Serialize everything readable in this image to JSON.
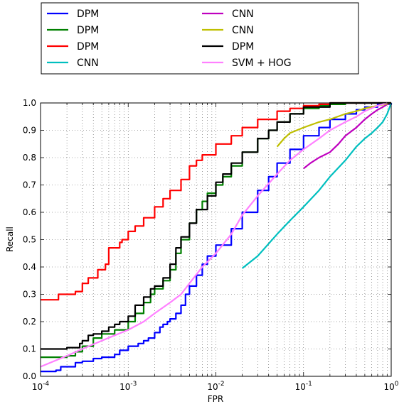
{
  "chart_data": {
    "type": "line",
    "xlabel": "FPR",
    "ylabel": "Recall",
    "xscale": "log",
    "xlim": [
      0.0001,
      1
    ],
    "ylim": [
      0.0,
      1.0
    ],
    "grid": true,
    "legend_placement": "top",
    "x_tick_labels": [
      {
        "base": "10",
        "exp": "-4"
      },
      {
        "base": "10",
        "exp": "-3"
      },
      {
        "base": "10",
        "exp": "-2"
      },
      {
        "base": "10",
        "exp": "-1"
      },
      {
        "base": "10",
        "exp": "0"
      }
    ],
    "y_tick_labels": [
      "0.0",
      "0.1",
      "0.2",
      "0.3",
      "0.4",
      "0.5",
      "0.6",
      "0.7",
      "0.8",
      "0.9",
      "1.0"
    ],
    "series": [
      {
        "name": "DPM",
        "color": "#0000ff",
        "step": true,
        "x": [
          0.0001,
          0.00015,
          0.00017,
          0.00025,
          0.0003,
          0.0004,
          0.0005,
          0.0007,
          0.0008,
          0.001,
          0.0013,
          0.0015,
          0.0017,
          0.002,
          0.0023,
          0.0025,
          0.0028,
          0.003,
          0.0035,
          0.004,
          0.0045,
          0.005,
          0.006,
          0.007,
          0.008,
          0.01,
          0.015,
          0.02,
          0.03,
          0.04,
          0.05,
          0.07,
          0.1,
          0.15,
          0.2,
          0.3,
          0.4,
          0.5,
          0.7,
          1.0
        ],
        "y": [
          0.018,
          0.022,
          0.035,
          0.05,
          0.055,
          0.065,
          0.07,
          0.08,
          0.095,
          0.11,
          0.12,
          0.13,
          0.14,
          0.16,
          0.18,
          0.19,
          0.2,
          0.21,
          0.23,
          0.26,
          0.3,
          0.33,
          0.37,
          0.41,
          0.44,
          0.48,
          0.54,
          0.6,
          0.68,
          0.73,
          0.78,
          0.83,
          0.88,
          0.91,
          0.94,
          0.96,
          0.975,
          0.985,
          0.995,
          1.0
        ]
      },
      {
        "name": "DPM",
        "color": "#008000",
        "step": true,
        "x": [
          0.0001,
          0.0002,
          0.00025,
          0.0003,
          0.0004,
          0.0005,
          0.0007,
          0.001,
          0.0012,
          0.0015,
          0.0018,
          0.002,
          0.0025,
          0.003,
          0.0035,
          0.004,
          0.005,
          0.006,
          0.007,
          0.008,
          0.01,
          0.012,
          0.015,
          0.02,
          0.03,
          0.04,
          0.05,
          0.07,
          0.1,
          0.15,
          0.2,
          0.3,
          0.5,
          0.7,
          1.0
        ],
        "y": [
          0.07,
          0.075,
          0.09,
          0.11,
          0.14,
          0.155,
          0.17,
          0.2,
          0.23,
          0.27,
          0.3,
          0.32,
          0.35,
          0.39,
          0.45,
          0.5,
          0.56,
          0.61,
          0.64,
          0.67,
          0.7,
          0.73,
          0.77,
          0.82,
          0.87,
          0.9,
          0.93,
          0.96,
          0.98,
          0.99,
          0.995,
          1.0,
          1.0,
          1.0,
          1.0
        ]
      },
      {
        "name": "DPM",
        "color": "#ff0000",
        "step": true,
        "x": [
          0.0001,
          0.00016,
          0.00025,
          0.0003,
          0.00035,
          0.00045,
          0.00055,
          0.0006,
          0.0008,
          0.00085,
          0.001,
          0.0012,
          0.0015,
          0.002,
          0.0025,
          0.003,
          0.004,
          0.005,
          0.006,
          0.007,
          0.01,
          0.015,
          0.02,
          0.03,
          0.05,
          0.07,
          0.1,
          0.15,
          0.2,
          0.3,
          0.5,
          1.0
        ],
        "y": [
          0.28,
          0.3,
          0.31,
          0.34,
          0.36,
          0.39,
          0.41,
          0.47,
          0.49,
          0.5,
          0.53,
          0.55,
          0.58,
          0.62,
          0.65,
          0.68,
          0.72,
          0.77,
          0.79,
          0.81,
          0.85,
          0.88,
          0.91,
          0.94,
          0.97,
          0.98,
          0.99,
          0.995,
          1.0,
          1.0,
          1.0,
          1.0
        ]
      },
      {
        "name": "CNN",
        "color": "#00bfbf",
        "step": false,
        "x": [
          0.02,
          0.03,
          0.05,
          0.07,
          0.1,
          0.15,
          0.2,
          0.3,
          0.4,
          0.5,
          0.6,
          0.7,
          0.8,
          0.9,
          1.0
        ],
        "y": [
          0.395,
          0.44,
          0.52,
          0.57,
          0.62,
          0.68,
          0.73,
          0.79,
          0.84,
          0.87,
          0.89,
          0.91,
          0.93,
          0.96,
          1.0
        ]
      },
      {
        "name": "CNN",
        "color": "#bf00bf",
        "step": false,
        "x": [
          0.1,
          0.12,
          0.15,
          0.2,
          0.25,
          0.3,
          0.4,
          0.5,
          0.6,
          0.7,
          0.8,
          0.9,
          1.0
        ],
        "y": [
          0.76,
          0.78,
          0.8,
          0.82,
          0.85,
          0.88,
          0.91,
          0.94,
          0.96,
          0.975,
          0.985,
          0.995,
          1.0
        ]
      },
      {
        "name": "CNN",
        "color": "#bfbf00",
        "step": false,
        "x": [
          0.05,
          0.06,
          0.07,
          0.1,
          0.15,
          0.2,
          0.3,
          0.4,
          0.5,
          0.7,
          1.0
        ],
        "y": [
          0.84,
          0.87,
          0.89,
          0.91,
          0.93,
          0.94,
          0.96,
          0.97,
          0.98,
          0.99,
          1.0
        ]
      },
      {
        "name": "DPM",
        "color": "#000000",
        "step": true,
        "x": [
          0.0001,
          0.0002,
          0.00028,
          0.0003,
          0.00035,
          0.0004,
          0.0005,
          0.0006,
          0.0007,
          0.0008,
          0.001,
          0.0012,
          0.0015,
          0.0018,
          0.002,
          0.0025,
          0.003,
          0.0035,
          0.004,
          0.005,
          0.006,
          0.008,
          0.01,
          0.012,
          0.015,
          0.02,
          0.03,
          0.04,
          0.05,
          0.07,
          0.1,
          0.2,
          0.5,
          1.0
        ],
        "y": [
          0.1,
          0.105,
          0.12,
          0.13,
          0.15,
          0.155,
          0.165,
          0.18,
          0.19,
          0.2,
          0.22,
          0.26,
          0.29,
          0.32,
          0.33,
          0.36,
          0.41,
          0.47,
          0.51,
          0.56,
          0.61,
          0.66,
          0.71,
          0.74,
          0.78,
          0.82,
          0.87,
          0.9,
          0.93,
          0.96,
          0.985,
          1.0,
          1.0,
          1.0
        ]
      },
      {
        "name": "SVM + HOG",
        "color": "#ff80ff",
        "step": false,
        "x": [
          0.0001,
          0.0002,
          0.0003,
          0.0005,
          0.0007,
          0.001,
          0.0015,
          0.002,
          0.003,
          0.004,
          0.005,
          0.007,
          0.01,
          0.015,
          0.02,
          0.03,
          0.05,
          0.07,
          0.1,
          0.15,
          0.2,
          0.3,
          0.4,
          0.5,
          0.7,
          0.9
        ],
        "y": [
          0.035,
          0.075,
          0.1,
          0.13,
          0.15,
          0.17,
          0.2,
          0.23,
          0.27,
          0.3,
          0.34,
          0.4,
          0.45,
          0.52,
          0.59,
          0.66,
          0.74,
          0.79,
          0.83,
          0.87,
          0.9,
          0.93,
          0.95,
          0.97,
          0.99,
          1.0
        ]
      }
    ]
  }
}
